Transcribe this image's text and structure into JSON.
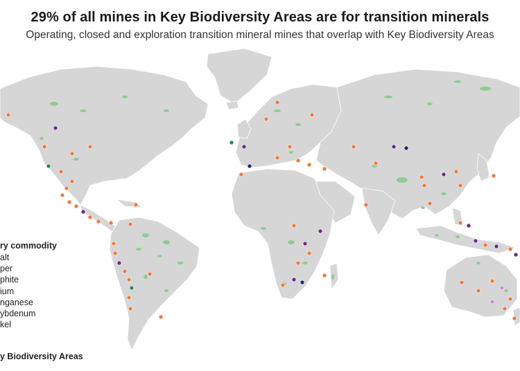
{
  "title": "29% of all mines in Key Biodiversity Areas are for transition minerals",
  "subtitle": "Operating, closed and exploration transition mineral mines that overlap with Key Biodiversity Areas",
  "legend": {
    "title": "ry commodity",
    "items": [
      "alt",
      "per",
      "phite",
      "ium",
      "nganese",
      "ybdenum",
      "kel",
      ""
    ],
    "kba": "y Biodiversity Areas"
  },
  "colors": {
    "land": "#d6d6d6",
    "borders": "#ffffff",
    "kba": "#8fcb92",
    "copper": "#f07a3a",
    "cobalt": "#6a2c8a",
    "nickel": "#1a2a7a",
    "manganese": "#c98bd0",
    "lithium": "#2a8a5a"
  }
}
